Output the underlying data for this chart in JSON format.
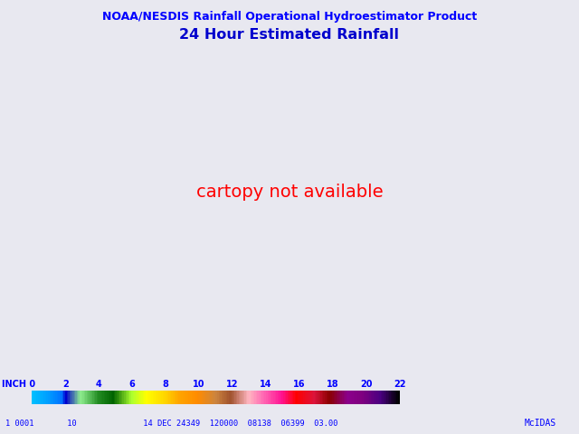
{
  "title_line1": "NOAA/NESDIS Rainfall Operational Hydroestimator Product",
  "title_line2": "24 Hour Estimated Rainfall",
  "title_color": "#0000FF",
  "title_line2_color": "#0000CD",
  "background_color": "#E8E8F0",
  "colorbar_label_color": "#0000FF",
  "colorbar_segments": [
    {
      "color": "#1E90FF",
      "label": null
    },
    {
      "color": "#0000CD",
      "label": null
    },
    {
      "color": "#90EE90",
      "label": null
    },
    {
      "color": "#228B22",
      "label": null
    },
    {
      "color": "#006400",
      "label": null
    },
    {
      "color": "#FFFF00",
      "label": null
    },
    {
      "color": "#DAA520",
      "label": null
    },
    {
      "color": "#FF8C00",
      "label": null
    },
    {
      "color": "#A0522D",
      "label": null
    },
    {
      "color": "#FFB6C1",
      "label": null
    },
    {
      "color": "#FF1493",
      "label": null
    },
    {
      "color": "#FF0000",
      "label": null
    },
    {
      "color": "#C80000",
      "label": null
    },
    {
      "color": "#8B008B",
      "label": null
    },
    {
      "color": "#6A0080",
      "label": null
    },
    {
      "color": "#4B0082",
      "label": null
    },
    {
      "color": "#300050",
      "label": null
    },
    {
      "color": "#180028",
      "label": null
    },
    {
      "color": "#0A0010",
      "label": null
    },
    {
      "color": "#050008",
      "label": null
    },
    {
      "color": "#020005",
      "label": null
    },
    {
      "color": "#000000",
      "label": null
    }
  ],
  "colorbar_tick_labels": [
    "0",
    "2",
    "4",
    "6",
    "8",
    "10",
    "12",
    "14",
    "16",
    "18",
    "20",
    "22"
  ],
  "colorbar_tick_values": [
    0,
    2,
    4,
    6,
    8,
    10,
    12,
    14,
    16,
    18,
    20,
    22
  ],
  "colorbar_max": 22,
  "bottom_text_left": "1 0001       10              14 DEC 24349  120000  08138  06399  03.00",
  "bottom_text_right": "McIDAS",
  "bottom_text_color": "#0000FF",
  "map_land_color": "#E8E8F0",
  "map_ocean_color": "#C8D8E8",
  "state_border_color": "#707070",
  "country_border_color": "#505050",
  "map_extent": [
    -130,
    -60,
    20,
    55
  ],
  "figsize": [
    6.4,
    4.8
  ],
  "dpi": 100,
  "west_rain_seed": 42,
  "rain_colormap": [
    [
      0.0,
      "#00BFFF"
    ],
    [
      0.04,
      "#00A0FF"
    ],
    [
      0.08,
      "#0070FF"
    ],
    [
      0.09,
      "#0000CD"
    ],
    [
      0.13,
      "#90EE90"
    ],
    [
      0.18,
      "#228B22"
    ],
    [
      0.22,
      "#006400"
    ],
    [
      0.27,
      "#ADFF2F"
    ],
    [
      0.31,
      "#FFFF00"
    ],
    [
      0.36,
      "#FFD700"
    ],
    [
      0.4,
      "#FFA500"
    ],
    [
      0.45,
      "#FF8C00"
    ],
    [
      0.5,
      "#CD853F"
    ],
    [
      0.54,
      "#A0522D"
    ],
    [
      0.59,
      "#FFB6C1"
    ],
    [
      0.63,
      "#FF69B4"
    ],
    [
      0.68,
      "#FF1493"
    ],
    [
      0.72,
      "#FF0000"
    ],
    [
      0.77,
      "#DC143C"
    ],
    [
      0.81,
      "#8B0000"
    ],
    [
      0.86,
      "#8B008B"
    ],
    [
      0.9,
      "#800080"
    ],
    [
      0.95,
      "#4B0082"
    ],
    [
      1.0,
      "#000000"
    ]
  ]
}
